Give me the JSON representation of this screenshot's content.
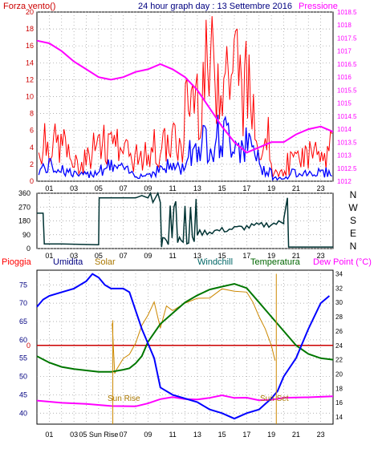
{
  "colors": {
    "wind_speed": "#ff0000",
    "wind_avg": "#0000ff",
    "pressure": "#ff00ff",
    "direction": "#003333",
    "rain": "#cc0000",
    "humidity": "#0000ff",
    "solar": "#cc8800",
    "windchill": "#008888",
    "temperature": "#007700",
    "dewpoint": "#ff00ff",
    "label_wind": "#cc0000",
    "label_title": "#000080",
    "label_solar": "#aa7700",
    "label_windchill": "#006666",
    "label_temp": "#006600"
  },
  "chart_data": [
    {
      "type": "line",
      "title": "24 hour graph day : 13 Settembre 2016",
      "left_label": "Forza vento()",
      "right_label": "Pressione",
      "x_ticks": [
        "01",
        "03",
        "05",
        "07",
        "09",
        "11",
        "13",
        "15",
        "17",
        "19",
        "21",
        "23"
      ],
      "ylim_left": [
        0,
        20
      ],
      "y_ticks_left": [
        "0",
        "2",
        "4",
        "6",
        "8",
        "10",
        "12",
        "14",
        "16",
        "18",
        "20"
      ],
      "ylim_right": [
        1012,
        1018.5
      ],
      "y_ticks_right": [
        "1012",
        "1012.5",
        "1013",
        "1013.5",
        "1014",
        "1014.5",
        "1015",
        "1015.5",
        "1016",
        "1016.5",
        "1017",
        "1017.5",
        "1018",
        "1018.5"
      ],
      "grid": true,
      "series": [
        {
          "name": "Pressione",
          "axis": "right",
          "x": [
            0,
            1,
            2,
            3,
            4,
            5,
            6,
            7,
            8,
            9,
            10,
            11,
            12,
            13,
            14,
            15,
            16,
            17,
            18,
            19,
            20,
            21,
            22,
            23,
            24
          ],
          "y": [
            1017.4,
            1017.3,
            1017.0,
            1016.6,
            1016.3,
            1016.0,
            1015.9,
            1016.0,
            1016.2,
            1016.3,
            1016.5,
            1016.3,
            1016.0,
            1015.5,
            1014.8,
            1014.1,
            1013.5,
            1013.1,
            1013.3,
            1013.5,
            1013.5,
            1013.8,
            1014.0,
            1014.1,
            1013.9
          ]
        }
      ]
    },
    {
      "type": "line",
      "right_labels": [
        "N",
        "W",
        "S",
        "E",
        "N"
      ],
      "ylim": [
        0,
        360
      ],
      "y_ticks": [
        "0",
        "90",
        "180",
        "270",
        "360"
      ],
      "x_ticks": [
        "01",
        "03",
        "05",
        "07",
        "09",
        "11",
        "13",
        "15",
        "17",
        "19",
        "21",
        "23"
      ],
      "grid": true
    },
    {
      "type": "line",
      "labels": {
        "rain": "Pioggia",
        "humidity": "Umidita",
        "solar": "Solar",
        "windchill": "Windchill",
        "temperature": "Temperatura",
        "dewpoint": "Dew Point (°C)"
      },
      "ylim_left": [
        37,
        79
      ],
      "y_ticks_left": [
        "40",
        "45",
        "50",
        "55",
        "60",
        "65",
        "70",
        "75"
      ],
      "rain_marker": "0",
      "ylim_right": [
        13,
        34.5
      ],
      "y_ticks_right": [
        "14",
        "16",
        "18",
        "20",
        "22",
        "24",
        "26",
        "28",
        "30",
        "32",
        "34"
      ],
      "x_ticks": [
        "01",
        "03",
        "05",
        "07",
        "09",
        "11",
        "13",
        "15",
        "17",
        "19",
        "21",
        "23"
      ],
      "sunrise_tick": "05 Sun Rise",
      "sun_rise_label": "Sun Rise",
      "sun_set_label": "Sun Set",
      "grid": true,
      "series": [
        {
          "name": "Umidita",
          "axis": "left",
          "x": [
            0,
            0.5,
            1,
            2,
            3,
            4,
            4.5,
            5,
            5.5,
            6,
            7,
            7.5,
            8,
            8.5,
            9,
            9.5,
            10,
            11,
            12,
            13,
            14,
            15,
            16,
            17,
            18,
            19,
            19.5,
            20,
            21,
            22,
            23,
            23.7
          ],
          "y": [
            69,
            71,
            72,
            73,
            74,
            76,
            78,
            77,
            75,
            74,
            74,
            73,
            68,
            63,
            59,
            55,
            47,
            45,
            44,
            43,
            41,
            40,
            38.5,
            40,
            41,
            44,
            46,
            50,
            55,
            63,
            70,
            72
          ]
        },
        {
          "name": "Temperatura",
          "axis": "right",
          "x": [
            0,
            1,
            2,
            3,
            4,
            5,
            6,
            7,
            7.5,
            8,
            8.5,
            9,
            10,
            11,
            12,
            13,
            14,
            15,
            16,
            17,
            18,
            19,
            20,
            21,
            22,
            23,
            24
          ],
          "y": [
            22.5,
            21.6,
            21.0,
            20.7,
            20.5,
            20.3,
            20.3,
            20.6,
            20.8,
            21.5,
            22.5,
            24.5,
            27.0,
            28.5,
            30.0,
            31.0,
            31.8,
            32.2,
            32.6,
            32.0,
            30.0,
            28.0,
            26.0,
            24.0,
            22.8,
            22.2,
            22.0
          ]
        },
        {
          "name": "Dew Point",
          "axis": "right",
          "x": [
            0,
            2,
            4,
            6,
            8,
            9,
            10,
            11,
            12,
            13,
            14,
            15,
            16,
            17,
            18,
            19,
            20,
            22,
            24
          ],
          "y": [
            16.2,
            16.0,
            15.8,
            15.6,
            15.5,
            16.0,
            16.5,
            16.8,
            16.5,
            16.3,
            16.6,
            16.9,
            16.8,
            16.6,
            16.2,
            16.5,
            16.8,
            16.9,
            16.8
          ]
        },
        {
          "name": "Solar",
          "axis": "right",
          "x": [
            6.1,
            6.3,
            6.5,
            7,
            7.5,
            8,
            8.5,
            9,
            9.5,
            10,
            10.5,
            11,
            12,
            13,
            14,
            15,
            16,
            17,
            17.5,
            18,
            18.5,
            19,
            19.3
          ],
          "y": [
            27.5,
            20.5,
            21.0,
            22.0,
            22.5,
            24.0,
            26.5,
            28.0,
            30.5,
            26.0,
            29.5,
            28.5,
            30.0,
            30.5,
            31.0,
            31.5,
            31.8,
            31.2,
            30.0,
            28.5,
            26.0,
            23.5,
            22.0
          ]
        }
      ]
    }
  ]
}
